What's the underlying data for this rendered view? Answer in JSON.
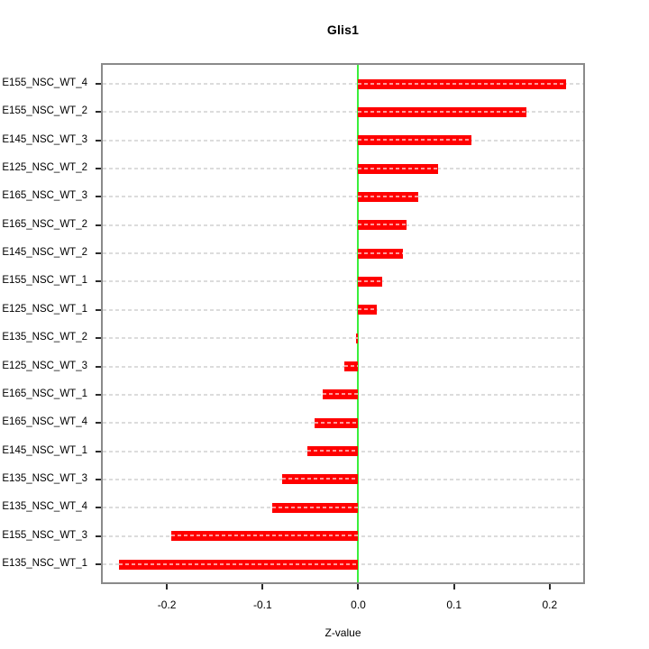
{
  "chart_data": {
    "type": "bar",
    "orientation": "horizontal",
    "title": "Glis1",
    "xlabel": "Z-value",
    "ylabel": "",
    "categories": [
      "E155_NSC_WT_4",
      "E155_NSC_WT_2",
      "E145_NSC_WT_3",
      "E125_NSC_WT_2",
      "E165_NSC_WT_3",
      "E165_NSC_WT_2",
      "E145_NSC_WT_2",
      "E155_NSC_WT_1",
      "E125_NSC_WT_1",
      "E135_NSC_WT_2",
      "E125_NSC_WT_3",
      "E165_NSC_WT_1",
      "E165_NSC_WT_4",
      "E145_NSC_WT_1",
      "E135_NSC_WT_3",
      "E135_NSC_WT_4",
      "E155_NSC_WT_3",
      "E135_NSC_WT_1"
    ],
    "values": [
      0.217,
      0.176,
      0.118,
      0.083,
      0.063,
      0.05,
      0.047,
      0.025,
      0.019,
      -0.002,
      -0.015,
      -0.037,
      -0.046,
      -0.053,
      -0.08,
      -0.09,
      -0.195,
      -0.25
    ],
    "xlim": [
      -0.267,
      0.235
    ],
    "x_tick_values": [
      -0.2,
      -0.1,
      0.0,
      0.1,
      0.2
    ],
    "x_tick_labels": [
      "-0.2",
      "-0.1",
      "0.0",
      "0.1",
      "0.2"
    ],
    "grid": "horizontal-dashed-per-category",
    "zero_reference_line": true,
    "legend": "none",
    "colors": {
      "bar": "#ff0000",
      "zero_line": "#3bef3b",
      "grid": "#dcdcdc",
      "box_border": "#8a8a8a",
      "text": "#000000",
      "background": "#ffffff"
    }
  }
}
